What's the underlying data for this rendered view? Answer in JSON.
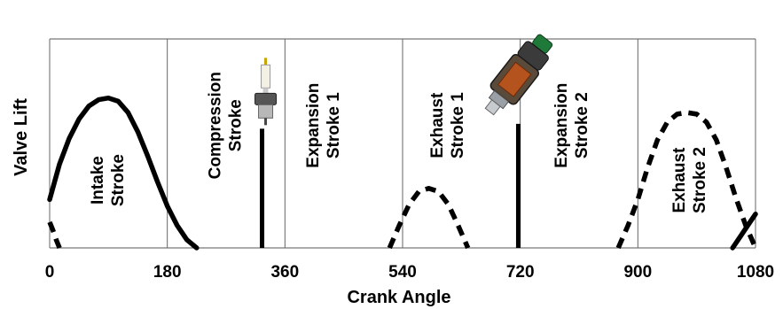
{
  "chart_data": {
    "type": "line",
    "title": "",
    "xlabel": "Crank Angle",
    "ylabel": "Valve Lift",
    "xlim": [
      0,
      1080
    ],
    "ylim": [
      0,
      1
    ],
    "x_ticks": [
      0,
      180,
      360,
      540,
      720,
      900,
      1080
    ],
    "x_tick_labels": [
      "0",
      "180",
      "360",
      "540",
      "720",
      "900",
      "1080"
    ],
    "grid": {
      "vertical": true,
      "horizontal": false
    },
    "legend": "none",
    "series": [
      {
        "style": "solid",
        "color": "#000000",
        "x": [
          0,
          15,
          30,
          45,
          60,
          75,
          90,
          105,
          120,
          135,
          150,
          165,
          180,
          195,
          210,
          225
        ],
        "y": [
          0.3,
          0.52,
          0.68,
          0.8,
          0.88,
          0.92,
          0.93,
          0.91,
          0.84,
          0.72,
          0.57,
          0.41,
          0.26,
          0.14,
          0.05,
          0.0
        ]
      },
      {
        "style": "dashed",
        "color": "#000000",
        "x": [
          0,
          5,
          10,
          15
        ],
        "y": [
          0.16,
          0.11,
          0.05,
          0.0
        ]
      },
      {
        "style": "dashed",
        "color": "#000000",
        "x": [
          520,
          535,
          550,
          565,
          580,
          595,
          610,
          625,
          640
        ],
        "y": [
          0.0,
          0.14,
          0.27,
          0.35,
          0.37,
          0.35,
          0.27,
          0.14,
          0.0
        ]
      },
      {
        "style": "dashed",
        "color": "#000000",
        "x": [
          870,
          885,
          900,
          915,
          930,
          945,
          960,
          975,
          990,
          1005,
          1020,
          1035,
          1050,
          1065,
          1080
        ],
        "y": [
          0.0,
          0.14,
          0.3,
          0.5,
          0.67,
          0.78,
          0.83,
          0.84,
          0.83,
          0.78,
          0.67,
          0.5,
          0.31,
          0.14,
          0.0
        ]
      },
      {
        "style": "solid",
        "color": "#000000",
        "x": [
          1045,
          1055,
          1065,
          1075,
          1080
        ],
        "y": [
          0.0,
          0.06,
          0.12,
          0.18,
          0.21
        ]
      }
    ],
    "events": [
      {
        "type": "spark-plug",
        "x": 325,
        "y_top": 0.74
      },
      {
        "type": "fuel-injector",
        "x": 717,
        "y_top": 0.77
      }
    ],
    "annotations": [
      {
        "lines": [
          "Intake",
          "Stroke"
        ],
        "x": 90,
        "y": 0.42
      },
      {
        "lines": [
          "Compression",
          "Stroke"
        ],
        "x": 270,
        "y": 0.76
      },
      {
        "lines": [
          "Expansion",
          "Stroke 1"
        ],
        "x": 420,
        "y": 0.76
      },
      {
        "lines": [
          "Exhaust",
          "Stroke 1"
        ],
        "x": 610,
        "y": 0.76
      },
      {
        "lines": [
          "Expansion",
          "Stroke 2"
        ],
        "x": 800,
        "y": 0.76
      },
      {
        "lines": [
          "Exhaust",
          "Stroke 2"
        ],
        "x": 980,
        "y": 0.42
      }
    ]
  }
}
